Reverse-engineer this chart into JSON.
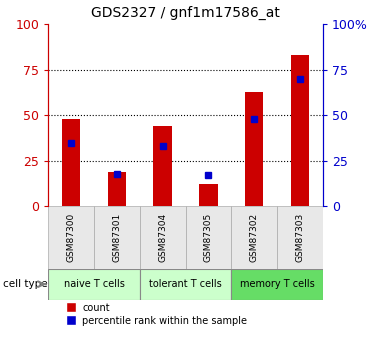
{
  "title": "GDS2327 / gnf1m17586_at",
  "samples": [
    "GSM87300",
    "GSM87301",
    "GSM87304",
    "GSM87305",
    "GSM87302",
    "GSM87303"
  ],
  "count_values": [
    48,
    19,
    44,
    12,
    63,
    83
  ],
  "percentile_values": [
    35,
    18,
    33,
    17,
    48,
    70
  ],
  "cell_types": [
    {
      "label": "naive T cells",
      "start": 0,
      "end": 2,
      "color": "#ccffcc"
    },
    {
      "label": "tolerant T cells",
      "start": 2,
      "end": 4,
      "color": "#ccffcc"
    },
    {
      "label": "memory T cells",
      "start": 4,
      "end": 6,
      "color": "#66dd66"
    }
  ],
  "cell_type_label": "cell type",
  "ylim": [
    0,
    100
  ],
  "bar_color": "#cc0000",
  "percentile_color": "#0000cc",
  "left_axis_color": "#cc0000",
  "right_axis_color": "#0000cc",
  "grid_color": "#000000",
  "yticks": [
    0,
    25,
    50,
    75,
    100
  ],
  "background_color": "#e8e8e8",
  "legend_count": "count",
  "legend_percentile": "percentile rank within the sample"
}
